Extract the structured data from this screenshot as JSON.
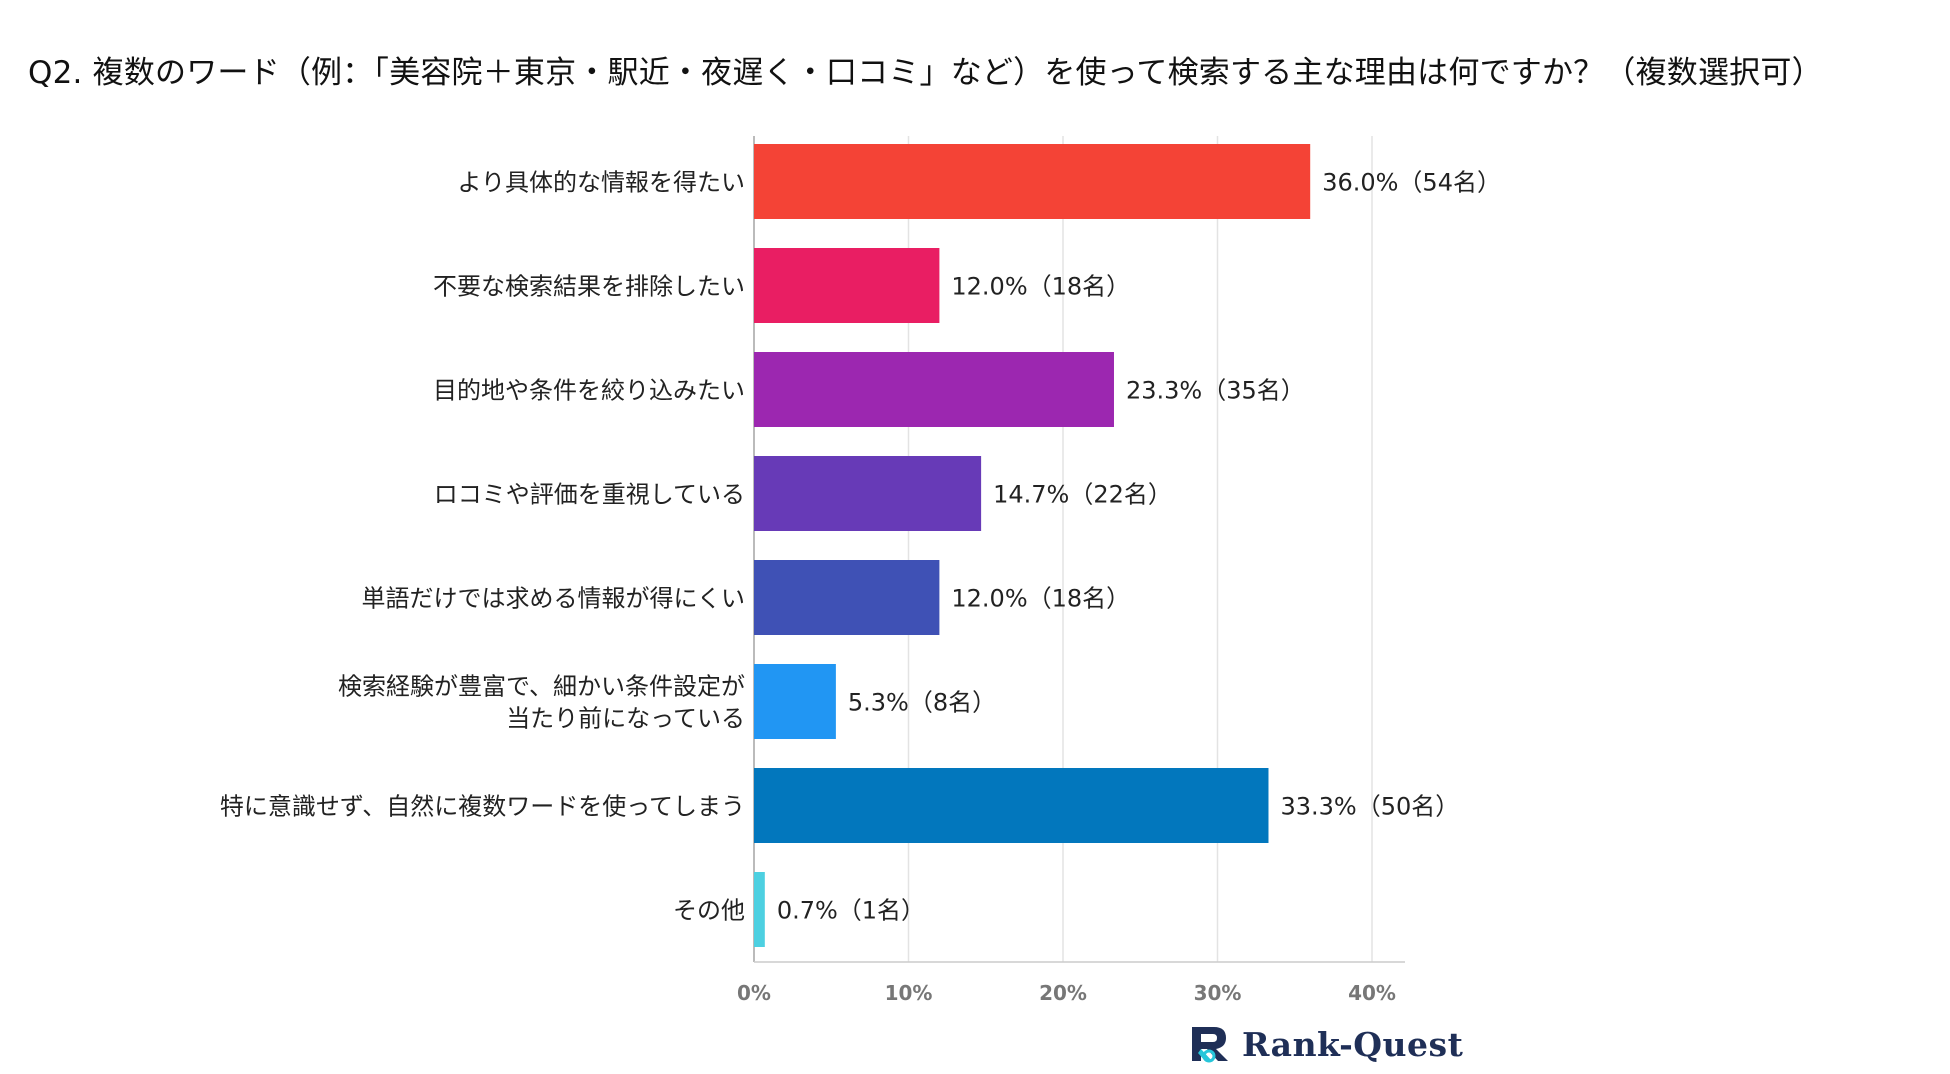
{
  "chart_data": {
    "type": "bar",
    "orientation": "horizontal",
    "title": "Q2. 複数のワード（例：「美容院＋東京・駅近・夜遅く・口コミ」など）を使って検索する主な理由は何ですか？（複数選択可）",
    "categories": [
      [
        "より具体的な情報を得たい"
      ],
      [
        "不要な検索結果を排除したい"
      ],
      [
        "目的地や条件を絞り込みたい"
      ],
      [
        "ロコミや評価を重視している"
      ],
      [
        "単語だけでは求める情報が得にくい"
      ],
      [
        "検索経験が豊富で、細かい条件設定が",
        "当たり前になっている"
      ],
      [
        "特に意識せず、自然に複数ワードを使ってしまう"
      ],
      [
        "その他"
      ]
    ],
    "values": [
      36.0,
      12.0,
      23.3,
      14.7,
      12.0,
      5.3,
      33.3,
      0.7
    ],
    "data_labels": [
      "36.0%（54名）",
      "12.0%（18名）",
      "23.3%（35名）",
      "14.7%（22名）",
      "12.0%（18名）",
      "5.3%（8名）",
      "33.3%（50名）",
      "0.7%（1名）"
    ],
    "colors": [
      "#f44336",
      "#e91e63",
      "#9c27b0",
      "#673ab7",
      "#3f51b5",
      "#2196f3",
      "#0277bd",
      "#4dd0e1"
    ],
    "xlim": [
      0,
      42
    ],
    "ticks": [
      0,
      10,
      20,
      30,
      40
    ],
    "tick_labels": [
      "0%",
      "10%",
      "20%",
      "30%",
      "40%"
    ],
    "grid": true,
    "xlabel": "",
    "ylabel": ""
  },
  "logo": {
    "text": "Rank-Quest",
    "icon": "rank-quest-logo-icon"
  }
}
